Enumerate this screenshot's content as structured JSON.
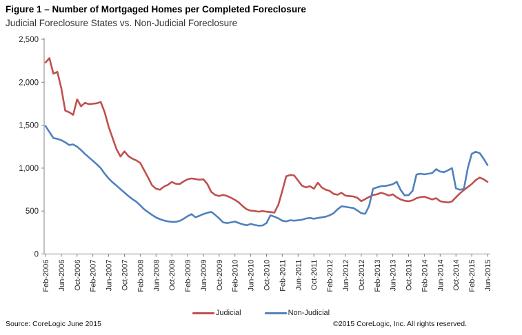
{
  "title": "Figure 1 – Number of Mortgaged Homes per Completed Foreclosure",
  "subtitle": "Judicial Foreclosure States vs. Non-Judicial Foreclosure",
  "footer": {
    "source": "Source: CoreLogic  June 2015",
    "copyright": "©2015 CoreLogic, Inc.  All rights reserved."
  },
  "legend": {
    "items": [
      {
        "label": "Judicial",
        "color": "#C0504D"
      },
      {
        "label": "Non-Judicial",
        "color": "#4F81BD"
      }
    ]
  },
  "chart_data": {
    "type": "line",
    "title": "Figure 1 – Number of Mortgaged Homes per Completed Foreclosure",
    "subtitle": "Judicial Foreclosure States vs. Non-Judicial Foreclosure",
    "xlabel": "",
    "ylabel": "",
    "x_frequency": "monthly",
    "x_start": "Feb-2006",
    "x_end": "Jun-2015",
    "x_tick_labels": [
      "Feb-2006",
      "Jun-2006",
      "Oct-2006",
      "Feb-2007",
      "Jun-2007",
      "Oct-2007",
      "Feb-2008",
      "Jun-2008",
      "Oct-2008",
      "Feb-2009",
      "Jun-2009",
      "Oct-2009",
      "Feb-2010",
      "Jun-2010",
      "Oct-2010",
      "Feb-2011",
      "Jun-2011",
      "Oct-2011",
      "Feb-2012",
      "Jun-2012",
      "Oct-2012",
      "Feb-2013",
      "Jun-2013",
      "Oct-2013",
      "Feb-2014",
      "Jun-2014",
      "Oct-2014",
      "Feb-2015",
      "Jun-2015"
    ],
    "x_tick_every_n_months": 4,
    "ylim": [
      0,
      2500
    ],
    "y_ticks": [
      0,
      500,
      1000,
      1500,
      2000,
      2500
    ],
    "y_tick_labels": [
      "0",
      "500",
      "1,000",
      "1,500",
      "2,000",
      "2,500"
    ],
    "grid": false,
    "legend_position": "bottom",
    "axis_color": "#808080",
    "series": [
      {
        "name": "Judicial",
        "color": "#C0504D",
        "values": [
          2230,
          2280,
          2100,
          2120,
          1930,
          1670,
          1650,
          1620,
          1800,
          1720,
          1760,
          1745,
          1750,
          1755,
          1770,
          1650,
          1480,
          1350,
          1220,
          1135,
          1195,
          1140,
          1110,
          1090,
          1060,
          975,
          890,
          800,
          760,
          748,
          785,
          805,
          838,
          818,
          815,
          845,
          870,
          880,
          872,
          865,
          870,
          815,
          722,
          688,
          675,
          688,
          676,
          655,
          630,
          600,
          555,
          520,
          505,
          500,
          493,
          500,
          493,
          488,
          482,
          575,
          735,
          905,
          920,
          915,
          855,
          795,
          775,
          790,
          760,
          830,
          775,
          748,
          735,
          700,
          690,
          713,
          680,
          675,
          670,
          655,
          615,
          640,
          665,
          686,
          695,
          713,
          700,
          680,
          695,
          660,
          635,
          620,
          614,
          625,
          650,
          662,
          668,
          650,
          635,
          650,
          615,
          605,
          600,
          612,
          660,
          705,
          745,
          780,
          815,
          860,
          890,
          870,
          840
        ]
      },
      {
        "name": "Non-Judicial",
        "color": "#4F81BD",
        "values": [
          1490,
          1420,
          1350,
          1340,
          1325,
          1300,
          1270,
          1275,
          1250,
          1210,
          1165,
          1125,
          1085,
          1045,
          1000,
          935,
          880,
          835,
          795,
          755,
          715,
          675,
          640,
          610,
          565,
          520,
          487,
          455,
          425,
          405,
          390,
          380,
          375,
          375,
          385,
          410,
          440,
          465,
          428,
          445,
          465,
          480,
          490,
          455,
          415,
          368,
          360,
          368,
          378,
          360,
          345,
          335,
          350,
          338,
          330,
          332,
          360,
          450,
          435,
          415,
          388,
          380,
          393,
          388,
          393,
          400,
          413,
          420,
          410,
          420,
          427,
          435,
          450,
          475,
          520,
          555,
          550,
          542,
          535,
          508,
          475,
          468,
          560,
          760,
          775,
          790,
          792,
          800,
          812,
          840,
          745,
          682,
          685,
          735,
          925,
          935,
          928,
          935,
          943,
          988,
          960,
          953,
          975,
          1000,
          765,
          748,
          758,
          1000,
          1165,
          1190,
          1175,
          1110,
          1035
        ]
      }
    ]
  }
}
